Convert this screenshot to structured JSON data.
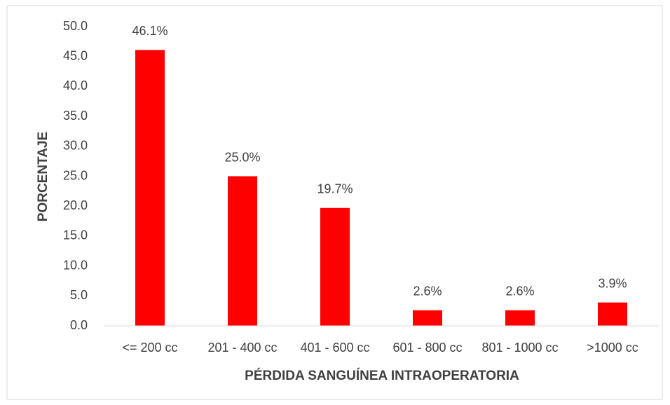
{
  "chart_data": {
    "type": "bar",
    "x_label": "PÉRDIDA SANGUÍNEA INTRAOPERATORIA",
    "y_label": "PORCENTAJE",
    "categories": [
      "<= 200 cc",
      "201 - 400 cc",
      "401 - 600 cc",
      "601 - 800 cc",
      "801 - 1000 cc",
      ">1000 cc"
    ],
    "values": [
      46.1,
      25.0,
      19.7,
      2.6,
      2.6,
      3.9
    ],
    "value_labels": [
      "46.1%",
      "25.0%",
      "19.7%",
      "2.6%",
      "2.6%",
      "3.9%"
    ],
    "color": "#ff0000",
    "ylim": [
      0,
      50
    ],
    "yticks": [
      {
        "value": 0,
        "label": "0.0"
      },
      {
        "value": 5,
        "label": "5.0"
      },
      {
        "value": 10,
        "label": "10.0"
      },
      {
        "value": 15,
        "label": "15.0"
      },
      {
        "value": 20,
        "label": "20.0"
      },
      {
        "value": 25,
        "label": "25.0"
      },
      {
        "value": 30,
        "label": "30.0"
      },
      {
        "value": 35,
        "label": "35.0"
      },
      {
        "value": 40,
        "label": "40.0"
      },
      {
        "value": 45,
        "label": "45.0"
      },
      {
        "value": 50,
        "label": "50.0"
      }
    ],
    "grid": false
  }
}
